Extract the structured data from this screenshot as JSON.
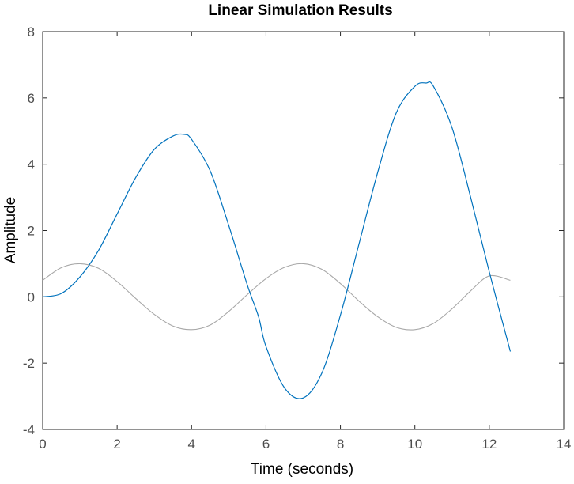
{
  "chart_data": {
    "type": "line",
    "title": "Linear Simulation Results",
    "xlabel": "Time (seconds)",
    "ylabel": "Amplitude",
    "xlim": [
      0,
      14
    ],
    "ylim": [
      -4,
      8
    ],
    "xticks": [
      0,
      2,
      4,
      6,
      8,
      10,
      12,
      14
    ],
    "yticks": [
      -4,
      -2,
      0,
      2,
      4,
      6,
      8
    ],
    "grid": false,
    "legend": "none",
    "colors": {
      "response": "#0072bd",
      "input": "#a8a8a8",
      "axes": "#262626",
      "ticks": "#4d4d4d"
    },
    "series": [
      {
        "role": "simulated-response",
        "x": [
          0,
          0.5,
          1,
          1.5,
          2,
          2.5,
          3,
          3.5,
          3.8,
          4,
          4.5,
          5,
          5.5,
          5.8,
          6,
          6.5,
          7,
          7.5,
          8,
          8.5,
          9,
          9.5,
          10,
          10.3,
          10.5,
          11,
          11.5,
          12,
          12.566
        ],
        "y": [
          0,
          0.1,
          0.6,
          1.4,
          2.5,
          3.6,
          4.45,
          4.85,
          4.9,
          4.75,
          3.8,
          2.15,
          0.35,
          -0.6,
          -1.5,
          -2.75,
          -3.05,
          -2.3,
          -0.55,
          1.6,
          3.75,
          5.55,
          6.35,
          6.45,
          6.35,
          5.1,
          3.0,
          0.75,
          -1.65
        ]
      },
      {
        "role": "input-signal",
        "x": [
          0,
          0.5,
          1,
          1.5,
          2,
          2.5,
          3,
          3.5,
          4,
          4.5,
          5,
          5.5,
          6,
          6.5,
          7,
          7.5,
          8,
          8.5,
          9,
          9.5,
          10,
          10.5,
          11,
          11.5,
          12,
          12.566
        ],
        "y": [
          0.5,
          0.88,
          1.0,
          0.86,
          0.46,
          -0.05,
          -0.53,
          -0.88,
          -0.99,
          -0.85,
          -0.44,
          0.07,
          0.55,
          0.89,
          1.0,
          0.83,
          0.4,
          -0.13,
          -0.6,
          -0.92,
          -0.99,
          -0.8,
          -0.36,
          0.18,
          0.63,
          0.5
        ]
      }
    ]
  }
}
